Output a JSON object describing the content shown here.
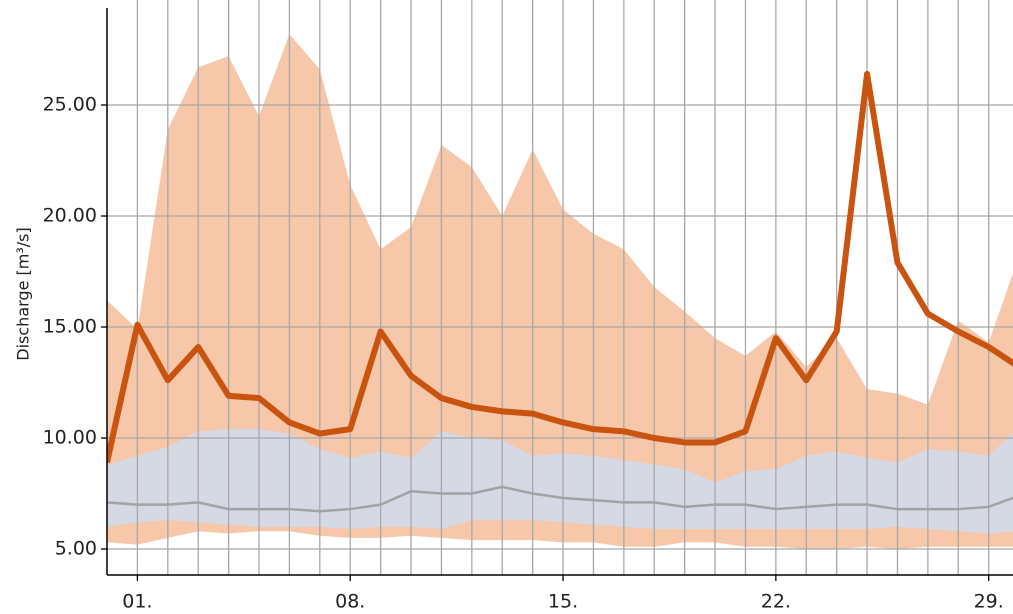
{
  "chart_data": {
    "type": "line",
    "y_label": "Discharge [m³/s]",
    "x": [
      0,
      1,
      2,
      3,
      4,
      5,
      6,
      7,
      8,
      9,
      10,
      11,
      12,
      13,
      14,
      15,
      16,
      17,
      18,
      19,
      20,
      21,
      22,
      23,
      24,
      25,
      26,
      27,
      28,
      29,
      30
    ],
    "xlim": [
      0,
      29.8
    ],
    "xticks": [
      {
        "value": 1,
        "label": "01."
      },
      {
        "value": 8,
        "label": "08."
      },
      {
        "value": 15,
        "label": "15."
      },
      {
        "value": 22,
        "label": "22."
      },
      {
        "value": 29,
        "label": "29."
      }
    ],
    "minor_xticks": [
      1,
      2,
      3,
      4,
      5,
      6,
      7,
      8,
      9,
      10,
      11,
      12,
      13,
      14,
      15,
      16,
      17,
      18,
      19,
      20,
      21,
      22,
      23,
      24,
      25,
      26,
      27,
      28,
      29
    ],
    "ylim": [
      3.83,
      29.73
    ],
    "yticks": [
      {
        "value": 5,
        "label": "5.00"
      },
      {
        "value": 10,
        "label": "10.00"
      },
      {
        "value": 15,
        "label": "15.00"
      },
      {
        "value": 20,
        "label": "20.00"
      },
      {
        "value": 25,
        "label": "25.00"
      }
    ],
    "grid": true,
    "range_band": {
      "color": "#f6c7a8",
      "upper": [
        16.2,
        14.9,
        23.9,
        26.7,
        27.2,
        24.5,
        28.2,
        26.6,
        21.4,
        18.5,
        19.5,
        23.2,
        22.2,
        20.0,
        23.0,
        20.3,
        19.2,
        18.5,
        16.8,
        15.7,
        14.5,
        13.7,
        14.8,
        13.2,
        14.5,
        12.2,
        12.0,
        11.5,
        15.3,
        14.3,
        18.2
      ],
      "lower": [
        5.3,
        5.2,
        5.5,
        5.8,
        5.7,
        5.8,
        5.8,
        5.6,
        5.5,
        5.5,
        5.6,
        5.5,
        5.4,
        5.4,
        5.4,
        5.3,
        5.3,
        5.1,
        5.1,
        5.3,
        5.3,
        5.1,
        5.1,
        5.0,
        5.0,
        5.1,
        5.0,
        5.1,
        5.1,
        5.1,
        5.1
      ]
    },
    "quartile_band": {
      "color": "#d4d9e3",
      "upper": [
        8.8,
        9.2,
        9.6,
        10.3,
        10.4,
        10.4,
        10.2,
        9.5,
        9.1,
        9.4,
        9.1,
        10.3,
        10.0,
        9.9,
        9.2,
        9.3,
        9.2,
        9.0,
        8.8,
        8.6,
        8.0,
        8.5,
        8.6,
        9.2,
        9.4,
        9.1,
        8.9,
        9.5,
        9.4,
        9.2,
        10.5
      ],
      "lower": [
        6.0,
        6.2,
        6.3,
        6.2,
        6.1,
        6.0,
        6.0,
        6.0,
        5.9,
        6.0,
        6.0,
        5.9,
        6.3,
        6.3,
        6.3,
        6.2,
        6.1,
        6.0,
        5.9,
        5.9,
        5.9,
        5.9,
        5.9,
        5.9,
        5.9,
        5.9,
        6.0,
        5.9,
        5.8,
        5.7,
        5.8
      ]
    },
    "median": {
      "color": "#a3a3a3",
      "values": [
        7.1,
        7.0,
        7.0,
        7.1,
        6.8,
        6.8,
        6.8,
        6.7,
        6.8,
        7.0,
        7.6,
        7.5,
        7.5,
        7.8,
        7.5,
        7.3,
        7.2,
        7.1,
        7.1,
        6.9,
        7.0,
        7.0,
        6.8,
        6.9,
        7.0,
        7.0,
        6.8,
        6.8,
        6.8,
        6.9,
        7.4
      ]
    },
    "discharge": {
      "color": "#c9540f",
      "values": [
        8.9,
        15.1,
        12.6,
        14.1,
        11.9,
        11.8,
        10.7,
        10.2,
        10.4,
        14.8,
        12.8,
        11.8,
        11.4,
        11.2,
        11.1,
        10.7,
        10.4,
        10.3,
        10.0,
        9.8,
        9.8,
        10.3,
        14.5,
        12.6,
        14.8,
        26.4,
        17.9,
        15.6,
        14.8,
        14.1,
        13.2
      ]
    }
  }
}
